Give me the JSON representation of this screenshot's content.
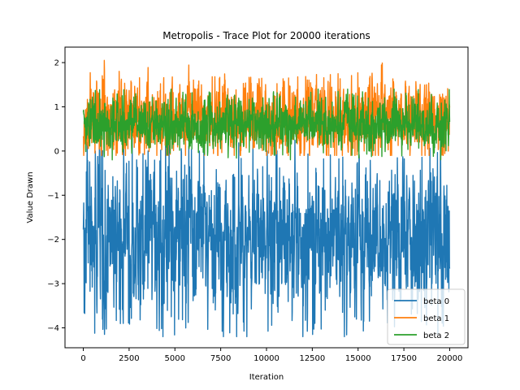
{
  "chart_data": {
    "type": "line",
    "title": "Metropolis - Trace Plot for 20000 iterations",
    "xlabel": "Iteration",
    "ylabel": "Value Drawn",
    "xlim": [
      -1000,
      21000
    ],
    "ylim": [
      -4.45,
      2.35
    ],
    "x_ticks": [
      0,
      2500,
      5000,
      7500,
      10000,
      12500,
      15000,
      17500,
      20000
    ],
    "y_ticks": [
      -4,
      -3,
      -2,
      -1,
      0,
      1,
      2
    ],
    "grid": false,
    "legend_position": "lower-right",
    "iterations": 20000,
    "series": [
      {
        "name": "beta 0",
        "color": "#1f77b4",
        "center": -1.95,
        "lower": -3.4,
        "upper": -0.55,
        "min": -4.2,
        "max": 0.3,
        "display_range": [
          -3.4,
          -0.55
        ]
      },
      {
        "name": "beta 1",
        "color": "#ff7f0e",
        "center": 0.75,
        "lower": 0.1,
        "upper": 1.5,
        "min": -0.1,
        "max": 2.05,
        "display_range": [
          0.1,
          1.5
        ]
      },
      {
        "name": "beta 2",
        "color": "#2ca02c",
        "center": 0.6,
        "lower": 0.15,
        "upper": 1.1,
        "min": -0.2,
        "max": 1.4,
        "display_range": [
          0.15,
          1.1
        ]
      }
    ]
  }
}
